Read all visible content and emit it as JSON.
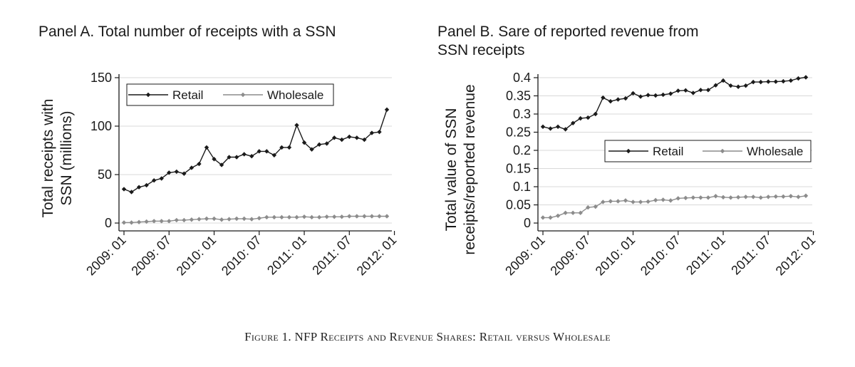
{
  "caption": "Figure 1. NFP Receipts and Revenue Shares: Retail versus Wholesale",
  "chart_data": [
    {
      "type": "line",
      "title": "Panel A. Total number of receipts with a SSN",
      "ylabel_lines": [
        "Total receipts with",
        "SSN (millions)"
      ],
      "xlabel": "",
      "x_ticks": [
        "2009: 01",
        "2009: 07",
        "2010: 01",
        "2010: 07",
        "2011: 01",
        "2011: 07",
        "2012: 01"
      ],
      "y_ticks": [
        "0",
        "50",
        "100",
        "150"
      ],
      "ylim": [
        0,
        150
      ],
      "grid": true,
      "legend": "top-left",
      "series": [
        {
          "name": "Retail",
          "color": "#1a1a1a",
          "values": [
            35,
            32,
            37,
            39,
            44,
            46,
            52,
            53,
            51,
            57,
            61,
            78,
            66,
            60,
            68,
            68,
            71,
            69,
            74,
            74,
            70,
            78,
            78,
            101,
            83,
            76,
            81,
            82,
            88,
            86,
            89,
            88,
            86,
            93,
            94,
            117
          ]
        },
        {
          "name": "Wholesale",
          "color": "#8c8c8c",
          "values": [
            0.5,
            0.5,
            1,
            1.5,
            2,
            2,
            2,
            3,
            3,
            3.5,
            4,
            4.5,
            4.5,
            3.5,
            4,
            4.5,
            4.5,
            4,
            5,
            6,
            6,
            6,
            6,
            6,
            6.5,
            6,
            6,
            6.5,
            6.5,
            6.5,
            7,
            7,
            7,
            7,
            7,
            7
          ]
        }
      ]
    },
    {
      "type": "line",
      "title_lines": [
        "Panel B. Sare of reported revenue from",
        "SSN receipts"
      ],
      "ylabel_lines": [
        "Total value of SSN",
        "receipts/reported revenue"
      ],
      "xlabel": "",
      "x_ticks": [
        "2009: 01",
        "2009: 07",
        "2010: 01",
        "2010: 07",
        "2011: 01",
        "2011: 07",
        "2012: 01"
      ],
      "y_ticks": [
        "0",
        "0.05",
        "0.1",
        "0.15",
        "0.2",
        "0.25",
        "0.3",
        "0.35",
        "0.4"
      ],
      "ylim": [
        0,
        0.4
      ],
      "grid": true,
      "legend": "center-right",
      "series": [
        {
          "name": "Retail",
          "color": "#1a1a1a",
          "values": [
            0.265,
            0.26,
            0.265,
            0.258,
            0.275,
            0.288,
            0.29,
            0.3,
            0.345,
            0.335,
            0.34,
            0.343,
            0.357,
            0.348,
            0.352,
            0.351,
            0.353,
            0.356,
            0.364,
            0.365,
            0.358,
            0.366,
            0.366,
            0.379,
            0.392,
            0.378,
            0.375,
            0.378,
            0.388,
            0.388,
            0.389,
            0.389,
            0.39,
            0.392,
            0.398,
            0.401
          ]
        },
        {
          "name": "Wholesale",
          "color": "#8c8c8c",
          "values": [
            0.015,
            0.015,
            0.02,
            0.028,
            0.028,
            0.028,
            0.043,
            0.045,
            0.058,
            0.06,
            0.06,
            0.062,
            0.058,
            0.058,
            0.059,
            0.063,
            0.064,
            0.062,
            0.068,
            0.069,
            0.07,
            0.07,
            0.07,
            0.074,
            0.071,
            0.07,
            0.071,
            0.072,
            0.072,
            0.07,
            0.072,
            0.073,
            0.073,
            0.074,
            0.072,
            0.075
          ]
        }
      ]
    }
  ]
}
